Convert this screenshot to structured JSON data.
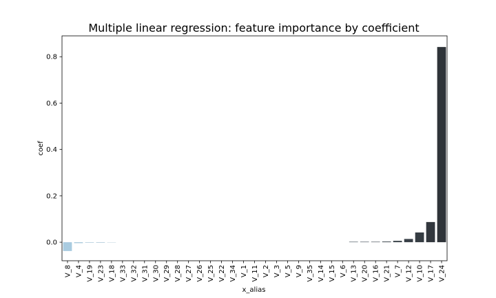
{
  "chart_data": {
    "type": "bar",
    "title": "Multiple linear regression: feature importance by coefficient",
    "xlabel": "x_alias",
    "ylabel": "coef",
    "categories": [
      "V_8",
      "V_4",
      "V_19",
      "V_23",
      "V_18",
      "V_33",
      "V_32",
      "V_31",
      "V_30",
      "V_29",
      "V_28",
      "V_27",
      "V_26",
      "V_25",
      "V_22",
      "V_34",
      "V_1",
      "V_11",
      "V_2",
      "V_3",
      "V_5",
      "V_9",
      "V_35",
      "V_14",
      "V_15",
      "V_6",
      "V_13",
      "V_20",
      "V_16",
      "V_21",
      "V_7",
      "V_12",
      "V_10",
      "V_17",
      "V_24"
    ],
    "values": [
      -0.038,
      -0.004,
      -0.002,
      -0.002,
      -0.001,
      0,
      0,
      0,
      0,
      0,
      0,
      0,
      0,
      0,
      0,
      0,
      0,
      0,
      0,
      0,
      0,
      0,
      0,
      0,
      0,
      0,
      0.002,
      0.002,
      0.002,
      0.003,
      0.006,
      0.014,
      0.042,
      0.087,
      0.842
    ],
    "ylim": [
      -0.08,
      0.89
    ],
    "yticks": [
      0.0,
      0.2,
      0.4,
      0.6,
      0.8
    ],
    "ytick_labels": [
      "0.0",
      "0.2",
      "0.4",
      "0.6",
      "0.8"
    ],
    "grid": false,
    "colors": {
      "negative": "#a9cbe0",
      "positive": "#2e3338",
      "axis": "#000000"
    }
  }
}
